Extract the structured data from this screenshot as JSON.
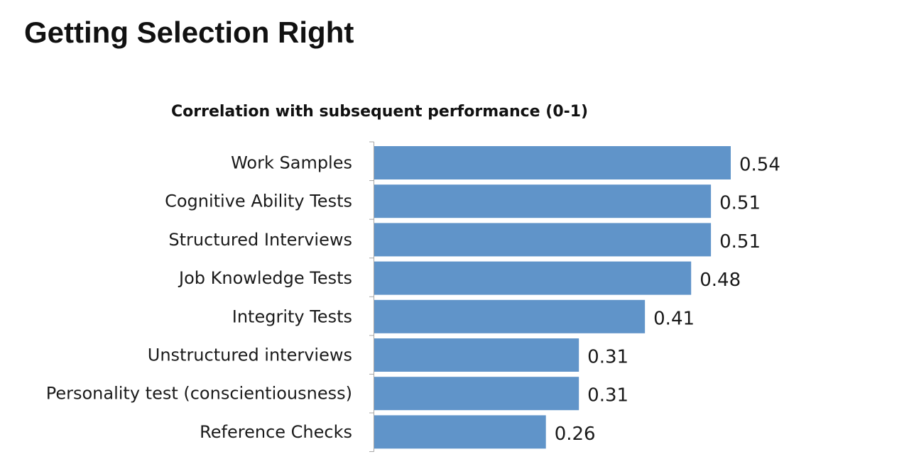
{
  "slide": {
    "title": "Getting Selection Right"
  },
  "chart_data": {
    "type": "bar",
    "orientation": "horizontal",
    "title": "Correlation with subsequent performance (0-1)",
    "xlabel": "",
    "ylabel": "",
    "categories": [
      "Work Samples",
      "Cognitive Ability Tests",
      "Structured Interviews",
      "Job Knowledge Tests",
      "Integrity Tests",
      "Unstructured interviews",
      "Personality test (conscientiousness)",
      "Reference Checks"
    ],
    "values": [
      0.54,
      0.51,
      0.51,
      0.48,
      0.41,
      0.31,
      0.31,
      0.26
    ],
    "value_labels": [
      "0.54",
      "0.51",
      "0.51",
      "0.48",
      "0.41",
      "0.31",
      "0.31",
      "0.26"
    ],
    "xlim": [
      0,
      0.54
    ],
    "grid": false,
    "legend": "none",
    "bar_color": "#6094c9",
    "axis_color": "#a6a6a6"
  }
}
